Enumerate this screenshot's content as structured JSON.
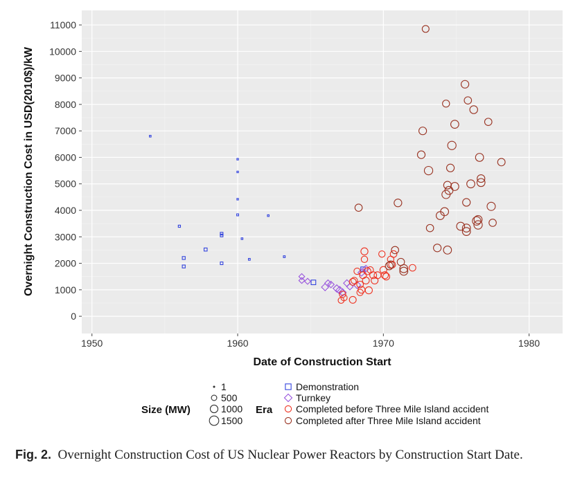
{
  "caption": {
    "label": "Fig. 2.",
    "text": "Overnight Construction Cost of US Nuclear Power Reactors by Construction Start Date."
  },
  "chart_data": {
    "type": "scatter",
    "title": "",
    "xlabel": "Date of Construction Start",
    "ylabel": "Overnight Construction Cost in USD(2010$)/kW",
    "xlim": [
      1949.3,
      1982.3
    ],
    "ylim": [
      -650,
      11550
    ],
    "x_ticks": [
      1950,
      1960,
      1970,
      1980
    ],
    "x_tick_labels": [
      "1950",
      "1960",
      "1970",
      "1980"
    ],
    "y_ticks": [
      0,
      1000,
      2000,
      3000,
      4000,
      5000,
      6000,
      7000,
      8000,
      9000,
      10000,
      11000
    ],
    "y_tick_labels": [
      "0",
      "1000",
      "2000",
      "3000",
      "4000",
      "5000",
      "6000",
      "7000",
      "8000",
      "9000",
      "10000",
      "11000"
    ],
    "grid": true,
    "background": "#ebebeb",
    "legend_position": "bottom",
    "legend": {
      "size_title": "Size (MW)",
      "size_entries": [
        {
          "label": "1",
          "value": 1
        },
        {
          "label": "500",
          "value": 500
        },
        {
          "label": "1000",
          "value": 1000
        },
        {
          "label": "1500",
          "value": 1500
        }
      ],
      "era_title": "Era",
      "era_entries": [
        {
          "label": "Demonstration",
          "shape": "square",
          "color": "#3344dd"
        },
        {
          "label": "Turnkey",
          "shape": "diamond",
          "color": "#9955dd"
        },
        {
          "label": "Completed before Three Mile Island accident",
          "shape": "circle",
          "color": "#ee3322"
        },
        {
          "label": "Completed after Three Mile Island accident",
          "shape": "circle",
          "color": "#993322"
        }
      ]
    },
    "series": [
      {
        "name": "Demonstration",
        "shape": "square",
        "color": "#3344dd",
        "points": [
          {
            "x": 1954.0,
            "y": 6800,
            "size": 60
          },
          {
            "x": 1956.0,
            "y": 3400,
            "size": 100
          },
          {
            "x": 1956.3,
            "y": 2200,
            "size": 180
          },
          {
            "x": 1956.3,
            "y": 1880,
            "size": 180
          },
          {
            "x": 1957.8,
            "y": 2520,
            "size": 200
          },
          {
            "x": 1958.9,
            "y": 3120,
            "size": 150
          },
          {
            "x": 1958.9,
            "y": 3050,
            "size": 150
          },
          {
            "x": 1958.9,
            "y": 2000,
            "size": 150
          },
          {
            "x": 1960.0,
            "y": 5930,
            "size": 50
          },
          {
            "x": 1960.0,
            "y": 5450,
            "size": 50
          },
          {
            "x": 1960.0,
            "y": 4420,
            "size": 50
          },
          {
            "x": 1960.0,
            "y": 3830,
            "size": 80
          },
          {
            "x": 1960.3,
            "y": 2930,
            "size": 60
          },
          {
            "x": 1960.8,
            "y": 2150,
            "size": 70
          },
          {
            "x": 1962.1,
            "y": 3800,
            "size": 60
          },
          {
            "x": 1963.2,
            "y": 2250,
            "size": 70
          },
          {
            "x": 1965.2,
            "y": 1280,
            "size": 450
          },
          {
            "x": 1968.6,
            "y": 1780,
            "size": 400
          }
        ]
      },
      {
        "name": "Turnkey",
        "shape": "diamond",
        "color": "#9955dd",
        "points": [
          {
            "x": 1964.4,
            "y": 1500,
            "size": 400
          },
          {
            "x": 1964.4,
            "y": 1350,
            "size": 400
          },
          {
            "x": 1964.8,
            "y": 1320,
            "size": 420
          },
          {
            "x": 1966.0,
            "y": 1100,
            "size": 600
          },
          {
            "x": 1966.2,
            "y": 1250,
            "size": 500
          },
          {
            "x": 1966.4,
            "y": 1200,
            "size": 500
          },
          {
            "x": 1966.8,
            "y": 1050,
            "size": 620
          },
          {
            "x": 1967.0,
            "y": 980,
            "size": 700
          },
          {
            "x": 1967.2,
            "y": 900,
            "size": 620
          },
          {
            "x": 1967.5,
            "y": 1250,
            "size": 550
          },
          {
            "x": 1967.7,
            "y": 1120,
            "size": 500
          },
          {
            "x": 1968.2,
            "y": 1180,
            "size": 600
          },
          {
            "x": 1968.8,
            "y": 1800,
            "size": 500
          },
          {
            "x": 1968.5,
            "y": 1650,
            "size": 600
          }
        ]
      },
      {
        "name": "Completed before Three Mile Island accident",
        "shape": "circle",
        "color": "#ee3322",
        "points": [
          {
            "x": 1967.1,
            "y": 600,
            "size": 600
          },
          {
            "x": 1967.2,
            "y": 830,
            "size": 700
          },
          {
            "x": 1967.3,
            "y": 700,
            "size": 650
          },
          {
            "x": 1967.9,
            "y": 620,
            "size": 800
          },
          {
            "x": 1967.9,
            "y": 1300,
            "size": 800
          },
          {
            "x": 1968.0,
            "y": 1350,
            "size": 700
          },
          {
            "x": 1968.2,
            "y": 1700,
            "size": 700
          },
          {
            "x": 1968.4,
            "y": 900,
            "size": 700
          },
          {
            "x": 1968.4,
            "y": 1200,
            "size": 750
          },
          {
            "x": 1968.5,
            "y": 1000,
            "size": 800
          },
          {
            "x": 1968.6,
            "y": 1550,
            "size": 800
          },
          {
            "x": 1968.7,
            "y": 2450,
            "size": 850
          },
          {
            "x": 1968.7,
            "y": 2150,
            "size": 700
          },
          {
            "x": 1968.8,
            "y": 1350,
            "size": 800
          },
          {
            "x": 1968.9,
            "y": 1700,
            "size": 850
          },
          {
            "x": 1969.0,
            "y": 980,
            "size": 850
          },
          {
            "x": 1969.1,
            "y": 1750,
            "size": 700
          },
          {
            "x": 1969.3,
            "y": 1550,
            "size": 800
          },
          {
            "x": 1969.4,
            "y": 1350,
            "size": 800
          },
          {
            "x": 1969.6,
            "y": 1550,
            "size": 800
          },
          {
            "x": 1969.9,
            "y": 2350,
            "size": 700
          },
          {
            "x": 1970.0,
            "y": 1750,
            "size": 800
          },
          {
            "x": 1970.1,
            "y": 1550,
            "size": 850
          },
          {
            "x": 1970.2,
            "y": 1500,
            "size": 800
          },
          {
            "x": 1970.5,
            "y": 2150,
            "size": 700
          },
          {
            "x": 1970.6,
            "y": 1950,
            "size": 800
          },
          {
            "x": 1970.7,
            "y": 2350,
            "size": 750
          },
          {
            "x": 1972.0,
            "y": 1830,
            "size": 750
          }
        ]
      },
      {
        "name": "Completed after Three Mile Island accident",
        "shape": "circle",
        "color": "#993322",
        "points": [
          {
            "x": 1968.3,
            "y": 4100,
            "size": 900
          },
          {
            "x": 1970.4,
            "y": 1900,
            "size": 1000
          },
          {
            "x": 1970.5,
            "y": 1950,
            "size": 900
          },
          {
            "x": 1970.8,
            "y": 2500,
            "size": 900
          },
          {
            "x": 1971.0,
            "y": 4280,
            "size": 1000
          },
          {
            "x": 1971.2,
            "y": 2050,
            "size": 900
          },
          {
            "x": 1971.4,
            "y": 1800,
            "size": 1100
          },
          {
            "x": 1971.4,
            "y": 1700,
            "size": 1100
          },
          {
            "x": 1972.6,
            "y": 6100,
            "size": 1000
          },
          {
            "x": 1972.7,
            "y": 7000,
            "size": 1000
          },
          {
            "x": 1972.9,
            "y": 10850,
            "size": 800
          },
          {
            "x": 1973.1,
            "y": 5500,
            "size": 1200
          },
          {
            "x": 1973.2,
            "y": 3330,
            "size": 900
          },
          {
            "x": 1973.7,
            "y": 2580,
            "size": 1000
          },
          {
            "x": 1973.9,
            "y": 3800,
            "size": 1100
          },
          {
            "x": 1974.2,
            "y": 3950,
            "size": 1100
          },
          {
            "x": 1974.3,
            "y": 8030,
            "size": 850
          },
          {
            "x": 1974.3,
            "y": 4600,
            "size": 1150
          },
          {
            "x": 1974.4,
            "y": 4950,
            "size": 1000
          },
          {
            "x": 1974.4,
            "y": 2500,
            "size": 1100
          },
          {
            "x": 1974.5,
            "y": 4750,
            "size": 1100
          },
          {
            "x": 1974.6,
            "y": 5600,
            "size": 1000
          },
          {
            "x": 1974.7,
            "y": 6450,
            "size": 1200
          },
          {
            "x": 1974.9,
            "y": 4900,
            "size": 1100
          },
          {
            "x": 1974.9,
            "y": 7250,
            "size": 1100
          },
          {
            "x": 1975.3,
            "y": 3400,
            "size": 1100
          },
          {
            "x": 1975.6,
            "y": 8760,
            "size": 1000
          },
          {
            "x": 1975.7,
            "y": 3200,
            "size": 1100
          },
          {
            "x": 1975.7,
            "y": 3330,
            "size": 1100
          },
          {
            "x": 1975.7,
            "y": 4300,
            "size": 1000
          },
          {
            "x": 1975.8,
            "y": 8150,
            "size": 900
          },
          {
            "x": 1976.0,
            "y": 5000,
            "size": 1100
          },
          {
            "x": 1976.2,
            "y": 7800,
            "size": 1050
          },
          {
            "x": 1976.4,
            "y": 3600,
            "size": 1200
          },
          {
            "x": 1976.5,
            "y": 3450,
            "size": 1200
          },
          {
            "x": 1976.5,
            "y": 3650,
            "size": 1100
          },
          {
            "x": 1976.6,
            "y": 6000,
            "size": 1100
          },
          {
            "x": 1976.7,
            "y": 5050,
            "size": 1100
          },
          {
            "x": 1976.7,
            "y": 5200,
            "size": 1000
          },
          {
            "x": 1977.2,
            "y": 7340,
            "size": 900
          },
          {
            "x": 1977.4,
            "y": 4150,
            "size": 1150
          },
          {
            "x": 1977.5,
            "y": 3530,
            "size": 900
          },
          {
            "x": 1978.1,
            "y": 5820,
            "size": 950
          }
        ]
      }
    ]
  }
}
